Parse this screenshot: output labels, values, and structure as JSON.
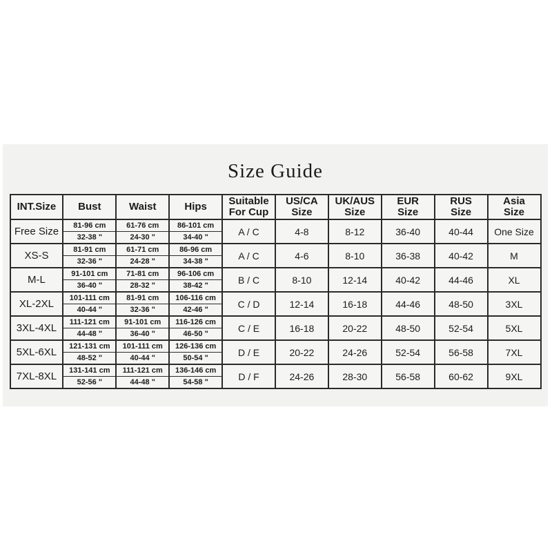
{
  "page": {
    "title": "Size Guide"
  },
  "colors": {
    "page_background": "#ffffff",
    "panel_background": "#f2f2f0",
    "cell_background": "#f5f5f3",
    "border": "#2a2a2a",
    "text": "#1b1b1b"
  },
  "table": {
    "columns": [
      {
        "key": "int_size",
        "label": "INT.Size"
      },
      {
        "key": "bust",
        "label": "Bust"
      },
      {
        "key": "waist",
        "label": "Waist"
      },
      {
        "key": "hips",
        "label": "Hips"
      },
      {
        "key": "cup",
        "label": "Suitable\nFor Cup"
      },
      {
        "key": "us_ca",
        "label": "US/CA\nSize"
      },
      {
        "key": "uk_aus",
        "label": "UK/AUS\nSize"
      },
      {
        "key": "eur",
        "label": "EUR\nSize"
      },
      {
        "key": "rus",
        "label": "RUS\nSize"
      },
      {
        "key": "asia",
        "label": "Asia\nSize"
      }
    ],
    "rows": [
      {
        "int_size": "Free Size",
        "bust_cm": "81-96 cm",
        "bust_in": "32-38 \"",
        "waist_cm": "61-76 cm",
        "waist_in": "24-30 \"",
        "hips_cm": "86-101 cm",
        "hips_in": "34-40 \"",
        "cup": "A / C",
        "us_ca": "4-8",
        "uk_aus": "8-12",
        "eur": "36-40",
        "rus": "40-44",
        "asia": "One Size"
      },
      {
        "int_size": "XS-S",
        "bust_cm": "81-91 cm",
        "bust_in": "32-36 \"",
        "waist_cm": "61-71 cm",
        "waist_in": "24-28 \"",
        "hips_cm": "86-96 cm",
        "hips_in": "34-38 \"",
        "cup": "A / C",
        "us_ca": "4-6",
        "uk_aus": "8-10",
        "eur": "36-38",
        "rus": "40-42",
        "asia": "M"
      },
      {
        "int_size": "M-L",
        "bust_cm": "91-101 cm",
        "bust_in": "36-40 \"",
        "waist_cm": "71-81 cm",
        "waist_in": "28-32 \"",
        "hips_cm": "96-106 cm",
        "hips_in": "38-42 \"",
        "cup": "B / C",
        "us_ca": "8-10",
        "uk_aus": "12-14",
        "eur": "40-42",
        "rus": "44-46",
        "asia": "XL"
      },
      {
        "int_size": "XL-2XL",
        "bust_cm": "101-111 cm",
        "bust_in": "40-44 \"",
        "waist_cm": "81-91 cm",
        "waist_in": "32-36 \"",
        "hips_cm": "106-116 cm",
        "hips_in": "42-46 \"",
        "cup": "C / D",
        "us_ca": "12-14",
        "uk_aus": "16-18",
        "eur": "44-46",
        "rus": "48-50",
        "asia": "3XL"
      },
      {
        "int_size": "3XL-4XL",
        "bust_cm": "111-121 cm",
        "bust_in": "44-48 \"",
        "waist_cm": "91-101 cm",
        "waist_in": "36-40 \"",
        "hips_cm": "116-126 cm",
        "hips_in": "46-50 \"",
        "cup": "C / E",
        "us_ca": "16-18",
        "uk_aus": "20-22",
        "eur": "48-50",
        "rus": "52-54",
        "asia": "5XL"
      },
      {
        "int_size": "5XL-6XL",
        "bust_cm": "121-131 cm",
        "bust_in": "48-52 \"",
        "waist_cm": "101-111 cm",
        "waist_in": "40-44 \"",
        "hips_cm": "126-136 cm",
        "hips_in": "50-54 \"",
        "cup": "D / E",
        "us_ca": "20-22",
        "uk_aus": "24-26",
        "eur": "52-54",
        "rus": "56-58",
        "asia": "7XL"
      },
      {
        "int_size": "7XL-8XL",
        "bust_cm": "131-141 cm",
        "bust_in": "52-56 \"",
        "waist_cm": "111-121 cm",
        "waist_in": "44-48 \"",
        "hips_cm": "136-146 cm",
        "hips_in": "54-58 \"",
        "cup": "D / F",
        "us_ca": "24-26",
        "uk_aus": "28-30",
        "eur": "56-58",
        "rus": "60-62",
        "asia": "9XL"
      }
    ]
  }
}
